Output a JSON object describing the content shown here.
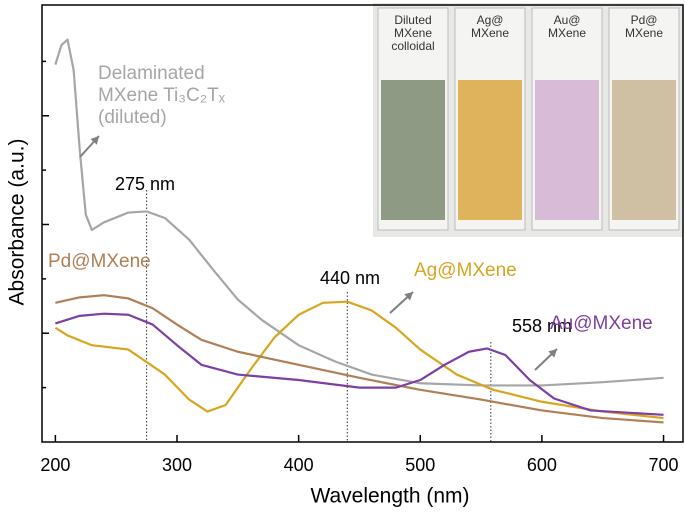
{
  "chart_data": {
    "type": "line",
    "xlabel": "Wavelength (nm)",
    "ylabel": "Absorbance (a.u.)",
    "xlim": [
      189,
      716
    ],
    "xticks": [
      200,
      300,
      400,
      500,
      600,
      700
    ],
    "ylim": [
      0,
      4
    ],
    "yticks": [
      0.5,
      1,
      1.5,
      2,
      2.5,
      3,
      3.5
    ],
    "series": [
      {
        "name": "Delaminated MXene Ti₃C₂Tₓ (diluted)",
        "color": "#a6a6a6",
        "x": [
          200,
          205,
          210,
          215,
          220,
          225,
          230,
          240,
          260,
          275,
          290,
          310,
          330,
          350,
          370,
          400,
          430,
          460,
          500,
          550,
          600,
          650,
          700
        ],
        "values": [
          3.47,
          3.65,
          3.7,
          3.42,
          2.69,
          2.09,
          1.95,
          2.02,
          2.11,
          2.12,
          2.06,
          1.86,
          1.58,
          1.31,
          1.12,
          0.89,
          0.74,
          0.62,
          0.54,
          0.52,
          0.52,
          0.55,
          0.59
        ]
      },
      {
        "name": "Ag@MXene",
        "color": "#d9a520",
        "x": [
          200,
          210,
          230,
          260,
          290,
          310,
          325,
          340,
          360,
          380,
          400,
          420,
          440,
          460,
          480,
          500,
          530,
          560,
          600,
          650,
          700
        ],
        "values": [
          1.05,
          0.98,
          0.89,
          0.85,
          0.62,
          0.39,
          0.28,
          0.34,
          0.66,
          0.96,
          1.17,
          1.28,
          1.29,
          1.21,
          1.05,
          0.85,
          0.62,
          0.48,
          0.37,
          0.28,
          0.22
        ]
      },
      {
        "name": "Pd@MXene",
        "color": "#b07f55",
        "x": [
          200,
          220,
          240,
          260,
          280,
          300,
          320,
          350,
          400,
          450,
          500,
          550,
          600,
          650,
          700
        ],
        "values": [
          1.28,
          1.33,
          1.35,
          1.32,
          1.23,
          1.08,
          0.94,
          0.83,
          0.71,
          0.59,
          0.48,
          0.39,
          0.29,
          0.22,
          0.18
        ]
      },
      {
        "name": "Au@MXene",
        "color": "#7c3fa3",
        "x": [
          200,
          220,
          240,
          260,
          280,
          300,
          320,
          350,
          400,
          450,
          480,
          500,
          520,
          540,
          555,
          570,
          590,
          610,
          640,
          700
        ],
        "values": [
          1.09,
          1.16,
          1.18,
          1.17,
          1.08,
          0.89,
          0.71,
          0.62,
          0.57,
          0.5,
          0.5,
          0.57,
          0.71,
          0.83,
          0.86,
          0.8,
          0.57,
          0.4,
          0.29,
          0.25
        ]
      }
    ],
    "peaks": [
      {
        "x": 275,
        "label": "275 nm"
      },
      {
        "x": 440,
        "label": "440 nm"
      },
      {
        "x": 558,
        "label": "558 nm"
      }
    ],
    "inset": {
      "labels": [
        "Diluted MXene colloidal",
        "Ag@ MXene",
        "Au@ MXene",
        "Pd@ MXene"
      ]
    }
  }
}
